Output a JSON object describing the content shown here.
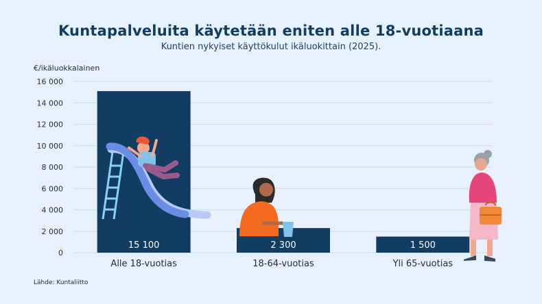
{
  "title": "Kuntapalveluita käytetään eniten alle 18-vuotiaana",
  "subtitle": "Kuntien nykyiset käyttökulut ikäluokittain (2025).",
  "source": "Lähde: Kuntaliitto",
  "colors": {
    "bar": "#123d63",
    "grid": "#c9dced",
    "text": "#1f2d3a",
    "background": "#e6f1fb"
  },
  "chart_data": {
    "type": "bar",
    "ylabel": "€/ikäluokkalainen",
    "xlabel": "",
    "ylim": [
      0,
      16000
    ],
    "yticks": [
      0,
      2000,
      4000,
      6000,
      8000,
      10000,
      12000,
      14000,
      16000
    ],
    "ytick_labels": [
      "0",
      "2 000",
      "4 000",
      "6 000",
      "8 000",
      "10 000",
      "12 000",
      "14 000",
      "16 000"
    ],
    "categories": [
      "Alle 18-vuotias",
      "18-64-vuotias",
      "Yli 65-vuotias"
    ],
    "values": [
      15100,
      2300,
      1500
    ],
    "value_labels": [
      "15 100",
      "2 300",
      "1 500"
    ],
    "grid": true,
    "legend": "none"
  }
}
